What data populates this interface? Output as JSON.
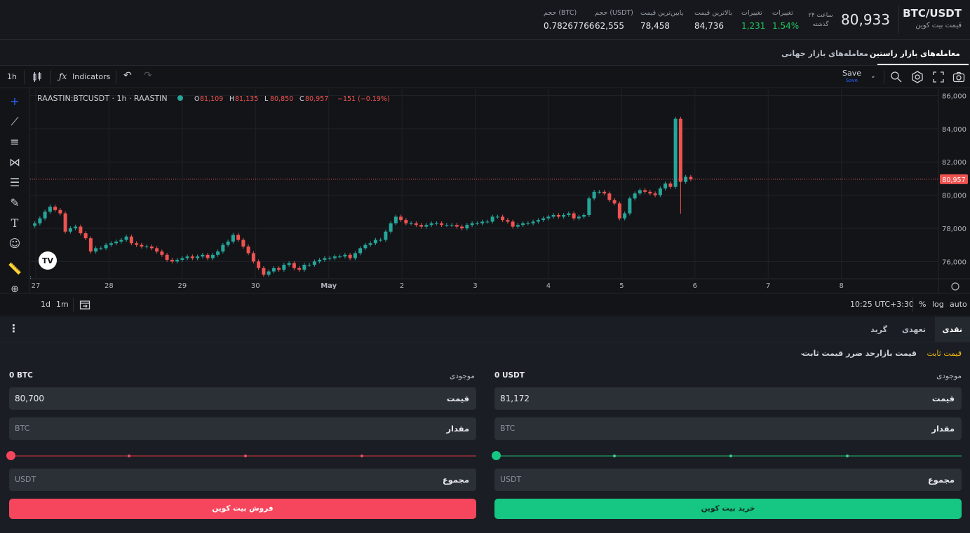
{
  "header": {
    "pair": "BTC/USDT",
    "pair_sub": "قیمت بیت کوین",
    "last_price": "80,933",
    "period_line1": "۲۴ ساعت",
    "period_line2": "گذشته",
    "stats": [
      {
        "label": "تغییرات",
        "value": "1.54%",
        "color": "#22c55e"
      },
      {
        "label": "تغییرات",
        "value": "1,231",
        "color": "#22c55e"
      },
      {
        "label": "بالاترین قیمت",
        "value": "84,736"
      },
      {
        "label": "پایین‌ترین قیمت",
        "value": "78,458"
      },
      {
        "label": "حجم (USDT)",
        "value": "62,555"
      },
      {
        "label": "حجم (BTC)",
        "value": "0.78267766"
      }
    ]
  },
  "market_tabs": {
    "active": "معامله‌های بازار راستین",
    "other": "معامله‌های بازار جهانی"
  },
  "toolbar": {
    "interval": "1h",
    "indicators": "Indicators",
    "save": "Save",
    "save_sub": "Save"
  },
  "legend": {
    "symbol": "RAASTIN:BTCUSDT · 1h · RAASTIN",
    "o_label": "O",
    "o": "81,109",
    "h_label": "H",
    "h": "81,135",
    "l_label": "L",
    "l": "80,850",
    "c_label": "C",
    "c": "80,957",
    "change": "−151 (−0.19%)"
  },
  "bottom_bar": {
    "range_1d": "1d",
    "range_1m": "1m",
    "time": "10:25 UTC+3:30",
    "pct": "%",
    "log": "log",
    "auto": "auto"
  },
  "chart_data": {
    "type": "candlestick",
    "x_ticks": [
      "27",
      "28",
      "29",
      "30",
      "May",
      "2",
      "3",
      "4",
      "5",
      "6",
      "7",
      "8"
    ],
    "y_ticks": [
      76000,
      78000,
      80000,
      82000,
      84000,
      86000
    ],
    "ylim": [
      75000,
      86400
    ],
    "last_price_label": "80,957",
    "last_price": 80957,
    "up_color": "#26a69a",
    "down_color": "#ef5350",
    "candles_close": [
      78300,
      78600,
      79000,
      79300,
      79100,
      78900,
      77800,
      78000,
      78100,
      77700,
      77400,
      76600,
      76800,
      76800,
      77000,
      77100,
      77200,
      77300,
      77500,
      77100,
      77000,
      76900,
      76900,
      76800,
      76600,
      76400,
      76100,
      76000,
      76100,
      76200,
      76300,
      76200,
      76300,
      76400,
      76200,
      76400,
      76600,
      77000,
      77200,
      77600,
      77300,
      76900,
      76500,
      76000,
      75600,
      75200,
      75400,
      75600,
      75500,
      75800,
      75900,
      75600,
      75500,
      75800,
      75800,
      76000,
      76100,
      76200,
      76200,
      76300,
      76300,
      76400,
      76200,
      76500,
      76800,
      77000,
      77100,
      77300,
      77300,
      77800,
      78300,
      78700,
      78500,
      78300,
      78300,
      78200,
      78100,
      78200,
      78300,
      78300,
      78200,
      78200,
      78200,
      78100,
      78000,
      78200,
      78300,
      78300,
      78400,
      78400,
      78700,
      78700,
      78500,
      78400,
      78100,
      78200,
      78300,
      78300,
      78400,
      78500,
      78600,
      78700,
      78800,
      78700,
      78800,
      78900,
      78600,
      78700,
      78800,
      79800,
      80200,
      80200,
      80100,
      79700,
      79500,
      78600,
      78900,
      79800,
      80100,
      80300,
      80200,
      80100,
      80000,
      80400,
      80700,
      80500,
      84600,
      80800,
      81100,
      80957
    ]
  },
  "order_tabs": {
    "spot": "نقدی",
    "futures": "تعهدی",
    "grid": "گرید"
  },
  "order_types": {
    "fixed": "قیمت ثابت",
    "market": "قیمت بازار",
    "stop": "حد ضرر قیمت ثابت"
  },
  "buy": {
    "balance_label": "موجودی",
    "balance": "0 USDT",
    "price_label": "قیمت",
    "price": "81,172",
    "amount_label": "مقدار",
    "amount_placeholder": "BTC",
    "total_label": "مجموع",
    "total_placeholder": "USDT",
    "button": "خرید بیت کوین"
  },
  "sell": {
    "balance_label": "موجودی",
    "balance": "0 BTC",
    "price_label": "قیمت",
    "price": "80,700",
    "amount_label": "مقدار",
    "amount_placeholder": "BTC",
    "total_label": "مجموع",
    "total_placeholder": "USDT",
    "button": "فروش بیت کوین"
  },
  "colors": {
    "buy": "#16c784",
    "sell": "#f6465d",
    "accent_yellow": "#f0b90b"
  }
}
